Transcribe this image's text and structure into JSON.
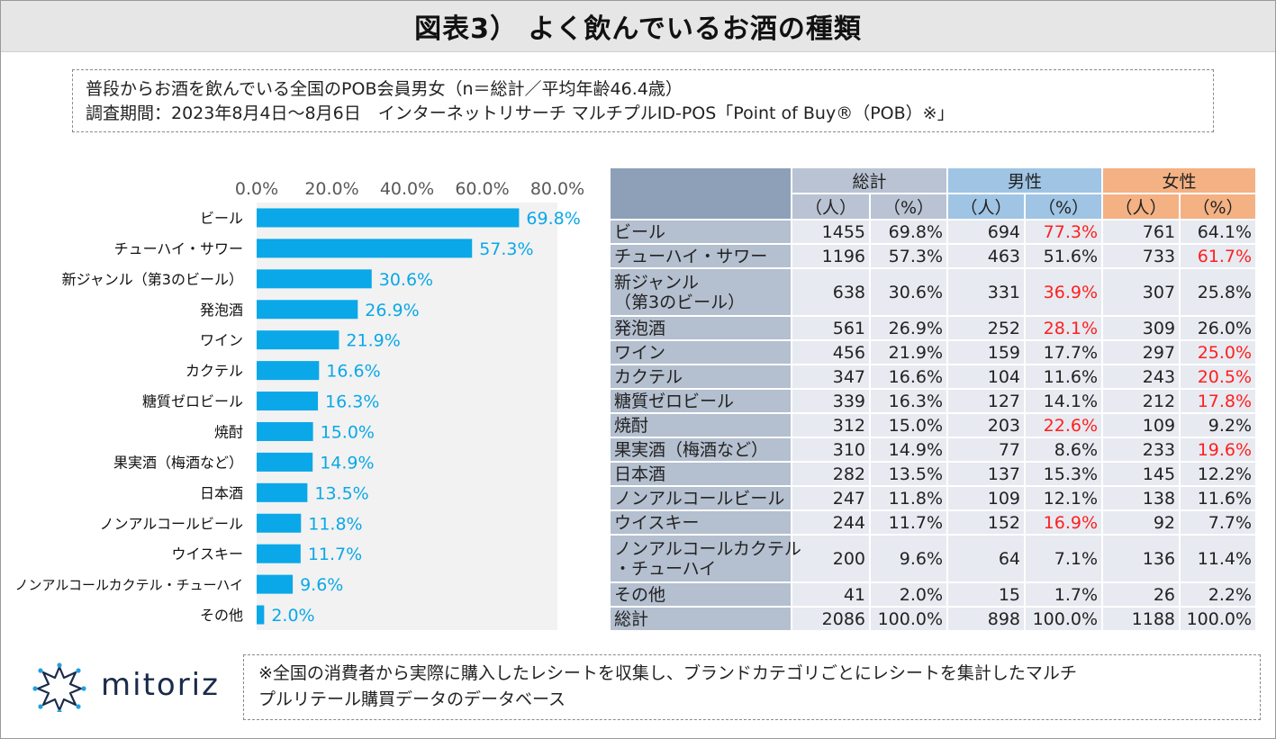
{
  "title": "図表3） よく飲んでいるお酒の種類",
  "survey": {
    "line1": "普段からお酒を飲んでいる全国のPOB会員男女（n＝総計／平均年齢46.4歳）",
    "line2": "調査期間：2023年8月4日～8月6日　インターネットリサーチ マルチプルID-POS「Point of Buy®（POB）※」"
  },
  "chart_data": {
    "type": "bar",
    "orientation": "horizontal",
    "xlim": [
      0,
      80
    ],
    "ticks": [
      "0.0%",
      "20.0%",
      "40.0%",
      "60.0%",
      "80.0%"
    ],
    "tick_values": [
      0,
      20,
      40,
      60,
      80
    ],
    "categories": [
      "ビール",
      "チューハイ・サワー",
      "新ジャンル（第3のビール）",
      "発泡酒",
      "ワイン",
      "カクテル",
      "糖質ゼロビール",
      "焼酎",
      "果実酒（梅酒など）",
      "日本酒",
      "ノンアルコールビール",
      "ウイスキー",
      "ノンアルコールカクテル・チューハイ",
      "その他"
    ],
    "values": [
      69.8,
      57.3,
      30.6,
      26.9,
      21.9,
      16.6,
      16.3,
      15.0,
      14.9,
      13.5,
      11.8,
      11.7,
      9.6,
      2.0
    ],
    "labels": [
      "69.8%",
      "57.3%",
      "30.6%",
      "26.9%",
      "21.9%",
      "16.6%",
      "16.3%",
      "15.0%",
      "14.9%",
      "13.5%",
      "11.8%",
      "11.7%",
      "9.6%",
      "2.0%"
    ],
    "bar_color": "#0aa8e8",
    "label_color": "#0aa8e8"
  },
  "table": {
    "groups": [
      "総計",
      "男性",
      "女性"
    ],
    "subheaders": [
      "（人）",
      "（%）",
      "（人）",
      "（%）",
      "（人）",
      "（%）"
    ],
    "rows": [
      {
        "label": [
          "ビール"
        ],
        "cells": [
          "1455",
          "69.8%",
          "694",
          "77.3%",
          "761",
          "64.1%"
        ],
        "hl": [
          3
        ]
      },
      {
        "label": [
          "チューハイ・サワー"
        ],
        "cells": [
          "1196",
          "57.3%",
          "463",
          "51.6%",
          "733",
          "61.7%"
        ],
        "hl": [
          5
        ]
      },
      {
        "label": [
          "新ジャンル",
          "（第3のビール）"
        ],
        "cells": [
          "638",
          "30.6%",
          "331",
          "36.9%",
          "307",
          "25.8%"
        ],
        "hl": [
          3
        ]
      },
      {
        "label": [
          "発泡酒"
        ],
        "cells": [
          "561",
          "26.9%",
          "252",
          "28.1%",
          "309",
          "26.0%"
        ],
        "hl": [
          3
        ]
      },
      {
        "label": [
          "ワイン"
        ],
        "cells": [
          "456",
          "21.9%",
          "159",
          "17.7%",
          "297",
          "25.0%"
        ],
        "hl": [
          5
        ]
      },
      {
        "label": [
          "カクテル"
        ],
        "cells": [
          "347",
          "16.6%",
          "104",
          "11.6%",
          "243",
          "20.5%"
        ],
        "hl": [
          5
        ]
      },
      {
        "label": [
          "糖質ゼロビール"
        ],
        "cells": [
          "339",
          "16.3%",
          "127",
          "14.1%",
          "212",
          "17.8%"
        ],
        "hl": [
          5
        ]
      },
      {
        "label": [
          "焼酎"
        ],
        "cells": [
          "312",
          "15.0%",
          "203",
          "22.6%",
          "109",
          "9.2%"
        ],
        "hl": [
          3
        ]
      },
      {
        "label": [
          "果実酒（梅酒など）"
        ],
        "cells": [
          "310",
          "14.9%",
          "77",
          "8.6%",
          "233",
          "19.6%"
        ],
        "hl": [
          5
        ]
      },
      {
        "label": [
          "日本酒"
        ],
        "cells": [
          "282",
          "13.5%",
          "137",
          "15.3%",
          "145",
          "12.2%"
        ],
        "hl": []
      },
      {
        "label": [
          "ノンアルコールビール"
        ],
        "cells": [
          "247",
          "11.8%",
          "109",
          "12.1%",
          "138",
          "11.6%"
        ],
        "hl": []
      },
      {
        "label": [
          "ウイスキー"
        ],
        "cells": [
          "244",
          "11.7%",
          "152",
          "16.9%",
          "92",
          "7.7%"
        ],
        "hl": [
          3
        ]
      },
      {
        "label": [
          "ノンアルコールカクテル",
          "・チューハイ"
        ],
        "cells": [
          "200",
          "9.6%",
          "64",
          "7.1%",
          "136",
          "11.4%"
        ],
        "hl": []
      },
      {
        "label": [
          "その他"
        ],
        "cells": [
          "41",
          "2.0%",
          "15",
          "1.7%",
          "26",
          "2.2%"
        ],
        "hl": []
      },
      {
        "label": [
          "総計"
        ],
        "cells": [
          "2086",
          "100.0%",
          "898",
          "100.0%",
          "1188",
          "100.0%"
        ],
        "hl": []
      }
    ],
    "highlight_color": "#ff1f1f"
  },
  "logo": {
    "text": "mitoriz"
  },
  "footnote": {
    "line1": "※全国の消費者から実際に購入したレシートを収集し、ブランドカテゴリごとにレシートを集計したマルチ",
    "line2": "プルリテール購買データのデータベース"
  }
}
